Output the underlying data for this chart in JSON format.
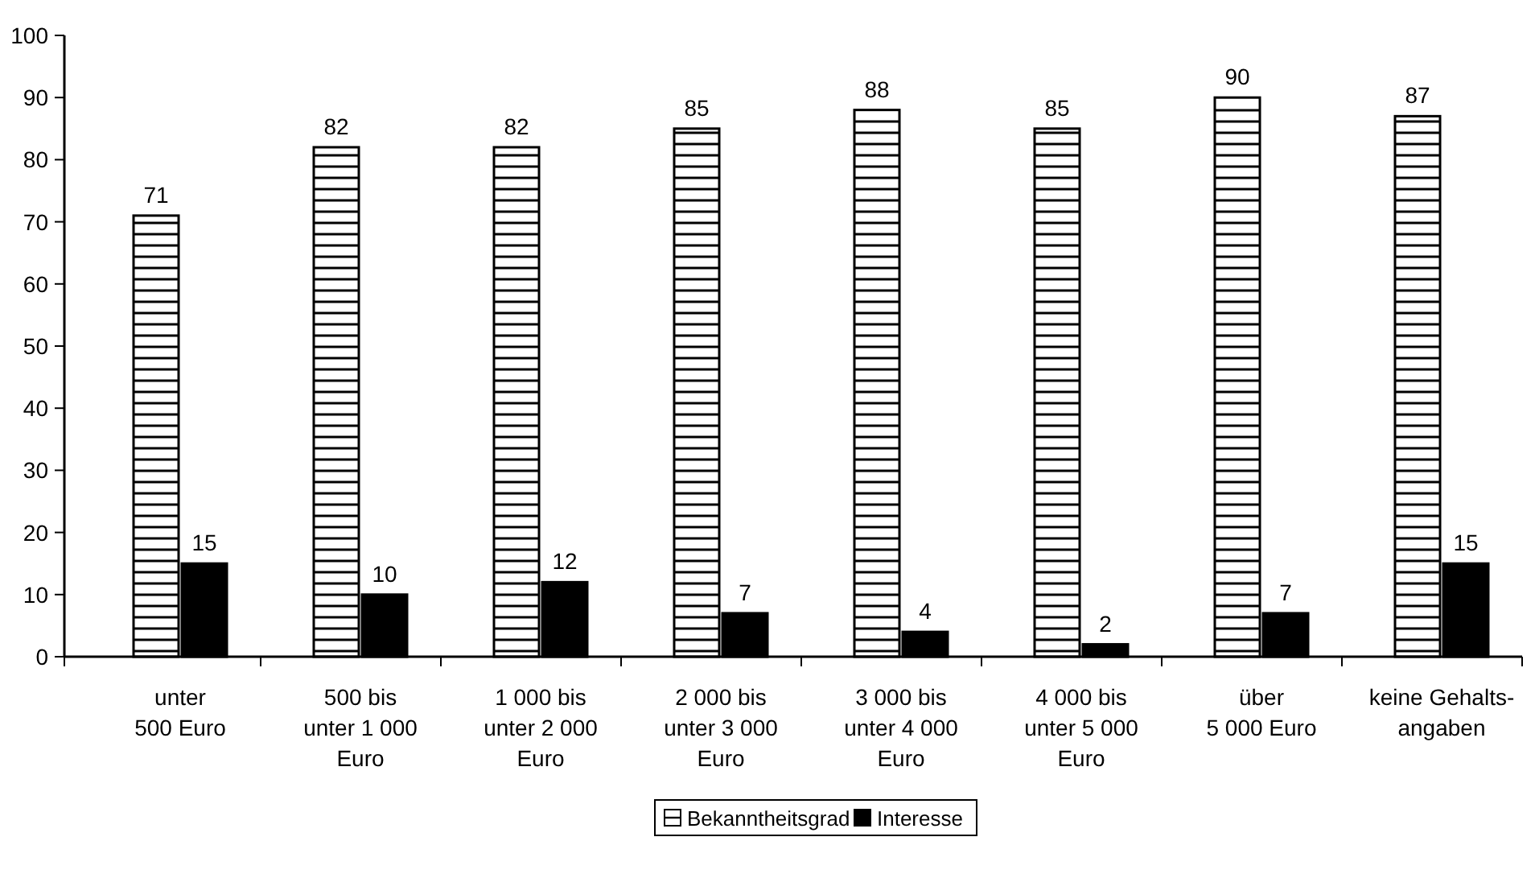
{
  "chart_data": {
    "type": "bar",
    "categories": [
      "unter\n500 Euro",
      "500 bis\nunter 1 000\nEuro",
      "1 000 bis\nunter 2 000\nEuro",
      "2 000 bis\nunter 3 000\nEuro",
      "3 000 bis\nunter 4 000\nEuro",
      "4 000 bis\nunter 5 000\nEuro",
      "über\n5 000 Euro",
      "keine Gehalts-\nangaben"
    ],
    "series": [
      {
        "name": "Bekanntheitsgrad",
        "color": "#ffffff",
        "values": [
          71,
          82,
          82,
          85,
          88,
          85,
          90,
          87
        ]
      },
      {
        "name": "Interesse",
        "color": "#000000",
        "values": [
          15,
          10,
          12,
          7,
          4,
          2,
          7,
          15
        ]
      }
    ],
    "ylim": [
      0,
      100
    ],
    "yticks": [
      0,
      10,
      20,
      30,
      40,
      50,
      60,
      70,
      80,
      90,
      100
    ],
    "data_labels": true,
    "legend": "bottom",
    "grid": false
  }
}
